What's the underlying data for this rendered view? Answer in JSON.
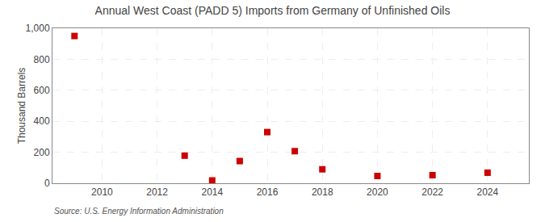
{
  "chart_data": {
    "type": "scatter",
    "title": "Annual West Coast (PADD 5) Imports from Germany of Unfinished Oils",
    "ylabel": "Thousand Barrels",
    "annotations": [
      "Source: U.S. Energy Information Administration"
    ],
    "x": [
      2009,
      2013,
      2014,
      2015,
      2016,
      2017,
      2018,
      2020,
      2022,
      2024
    ],
    "values": [
      950,
      178,
      18,
      143,
      330,
      207,
      90,
      47,
      52,
      68
    ],
    "color": "#cc0000",
    "marker": "square",
    "xlim": [
      2008.2,
      2025.5
    ],
    "ylim": [
      0,
      1000
    ],
    "xticks": [
      2010,
      2012,
      2014,
      2016,
      2018,
      2020,
      2022,
      2024
    ],
    "yticks": [
      0,
      200,
      400,
      600,
      {
        "value": 800,
        "label": "800"
      },
      {
        "value": 1000,
        "label": "1,000"
      }
    ],
    "grid": true
  }
}
